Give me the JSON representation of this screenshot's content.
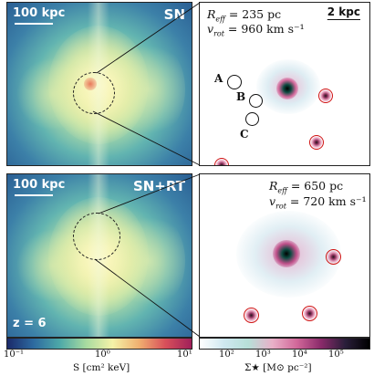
{
  "left_top": {
    "scale": "100 kpc",
    "run": "SN"
  },
  "left_bottom": {
    "scale": "100 kpc",
    "run": "SN+RT",
    "redshift": "z = 6"
  },
  "right_top": {
    "reff_label": "R",
    "reff_sub": "eff",
    "reff_value": "= 235 pc",
    "vrot_label": "v",
    "vrot_sub": "rot",
    "vrot_value": "= 960 km s⁻¹",
    "scale": "2 kpc",
    "markers": [
      "A",
      "B",
      "C"
    ]
  },
  "right_bottom": {
    "reff_label": "R",
    "reff_sub": "eff",
    "reff_value": "= 650 pc",
    "vrot_label": "v",
    "vrot_sub": "rot",
    "vrot_value": "= 720 km s⁻¹"
  },
  "colorbar_left": {
    "ticks": [
      "10⁻¹",
      "10⁰",
      "10¹"
    ],
    "label": "S [cm² keV]",
    "colors": [
      "#1b2a6a",
      "#2d6aa0",
      "#4ea9a8",
      "#a8dba0",
      "#f5f2a8",
      "#f0b070",
      "#d8505a",
      "#a0205a"
    ]
  },
  "colorbar_right": {
    "ticks": [
      "10²",
      "10³",
      "10⁴",
      "10⁵"
    ],
    "label": "Σ★ [M⊙ pc⁻²]",
    "colors": [
      "#ffffff",
      "#cfe8f0",
      "#b7e0d8",
      "#e8b0c8",
      "#d2689a",
      "#8a2a6a",
      "#2a1e3a",
      "#000000"
    ]
  }
}
